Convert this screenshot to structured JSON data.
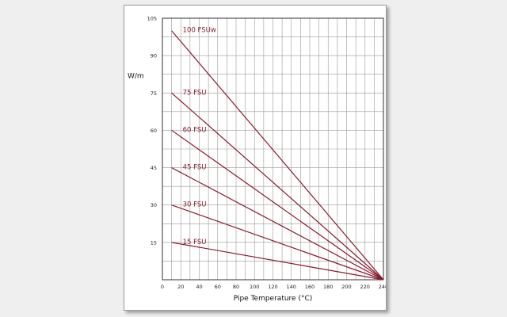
{
  "chart_data": {
    "type": "line",
    "title": "",
    "xlabel": "Pipe Temperature (°C)",
    "ylabel": "W/m",
    "xlim": [
      0,
      240
    ],
    "ylim": [
      0,
      105
    ],
    "grid": true,
    "x_ticks": [
      0,
      20,
      40,
      60,
      80,
      100,
      120,
      140,
      160,
      180,
      200,
      220,
      240
    ],
    "y_ticks": [
      15,
      30,
      45,
      60,
      75,
      90,
      105
    ],
    "series": [
      {
        "name": "100 FSUw",
        "x": [
          10,
          240
        ],
        "values": [
          100,
          0
        ]
      },
      {
        "name": "75 FSU",
        "x": [
          10,
          240
        ],
        "values": [
          75,
          0
        ]
      },
      {
        "name": "60 FSU",
        "x": [
          10,
          240
        ],
        "values": [
          60,
          0
        ]
      },
      {
        "name": "45 FSU",
        "x": [
          10,
          240
        ],
        "values": [
          45,
          0
        ]
      },
      {
        "name": "30 FSU",
        "x": [
          10,
          240
        ],
        "values": [
          30,
          0
        ]
      },
      {
        "name": "15 FSU",
        "x": [
          10,
          240
        ],
        "values": [
          15,
          0
        ]
      }
    ],
    "colors": {
      "line": "#8a1a2e",
      "grid": "#9a9a9a",
      "axis": "#222222"
    }
  }
}
